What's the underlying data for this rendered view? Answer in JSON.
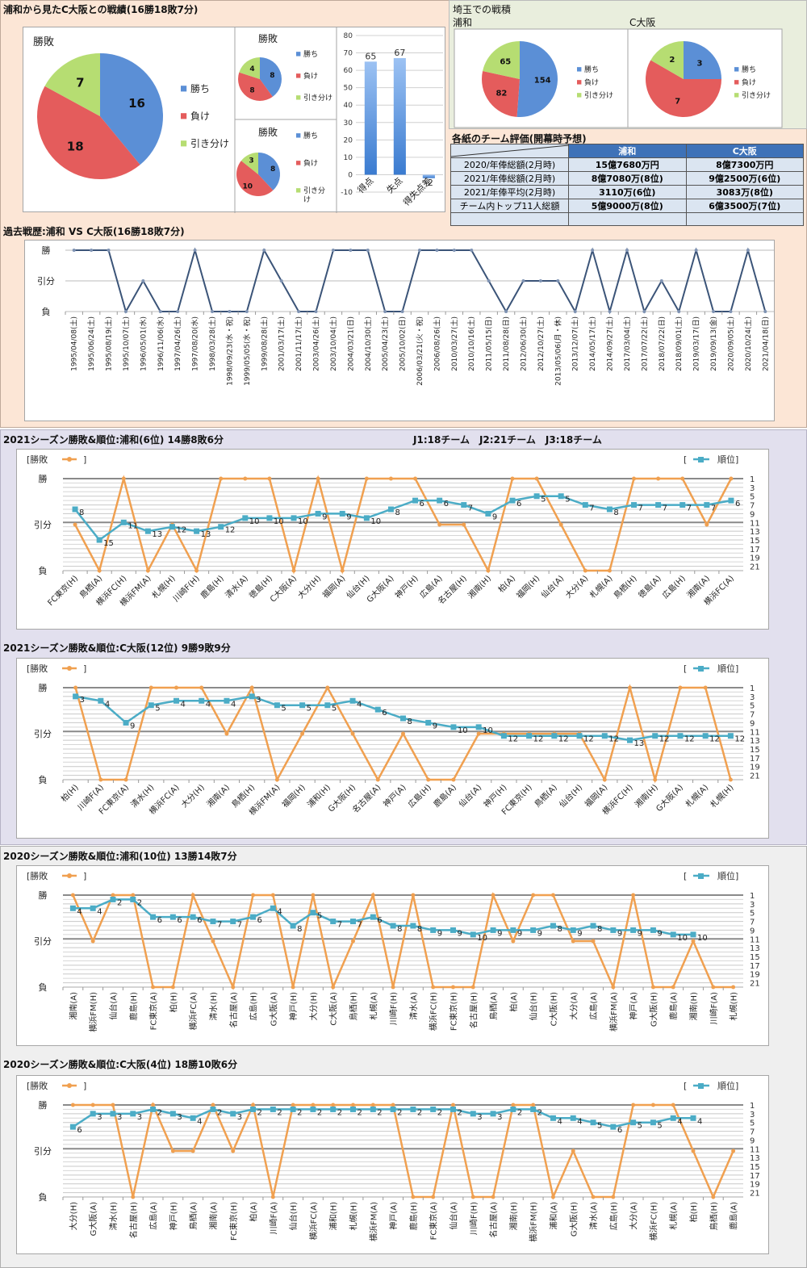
{
  "summary": {
    "title": "浦和から見たC大阪との戦績(16勝18敗7分)",
    "legend": {
      "win": "勝ち",
      "loss": "負け",
      "draw": "引き分け",
      "draw_wrapped": [
        "引き分",
        "け"
      ]
    },
    "colors": {
      "win": "#5b8fd6",
      "loss": "#e45c5c",
      "draw": "#b6dd72"
    }
  },
  "saitama": {
    "title": "埼玉での戦積",
    "urawa_label": "浦和",
    "cosaka_label": "C大阪"
  },
  "eval_table": {
    "title": "各紙のチーム評価(開幕時予想)",
    "headers": [
      "",
      "浦和",
      "C大阪"
    ],
    "rows": [
      [
        "2020/年俸総額(2月時)",
        "15億7680万円",
        "8億7300万円"
      ],
      [
        "2021/年俸総額(2月時)",
        "8億7080万(8位)",
        "9億2500万(6位)"
      ],
      [
        "2021/年俸平均(2月時)",
        "3110万(6位)",
        "3083万(8位)"
      ],
      [
        "チーム内トップ11人総額",
        "5億9000万(8位)",
        "6億3500万(7位)"
      ],
      [
        "",
        "",
        ""
      ]
    ]
  },
  "history_title": "過去戦歴:浦和 VS C大阪(16勝18敗7分)",
  "season_titles": {
    "s2021_urawa": "2021シーズン勝敗&順位:浦和(6位) 14勝8敗6分",
    "s2021_note": "J1:18チーム　J2:21チーム　J3:18チーム",
    "s2021_cosaka": "2021シーズン勝敗&順位:C大阪(12位) 9勝9敗9分",
    "s2020_urawa": "2020シーズン勝敗&順位:浦和(10位) 13勝14敗7分",
    "s2020_cosaka": "2020シーズン勝敗&順位:C大阪(4位) 18勝10敗6分"
  },
  "season_legend": {
    "result": "[勝敗",
    "result_close": "]",
    "rank_open": "[",
    "rank": "順位]"
  },
  "chart_data": [
    {
      "id": "pie_total",
      "type": "pie",
      "title": "勝敗",
      "labels": [
        "勝ち",
        "負け",
        "引き分け"
      ],
      "values": [
        16,
        18,
        7
      ]
    },
    {
      "id": "pie_home",
      "type": "pie",
      "title": "勝敗",
      "labels": [
        "勝ち",
        "負け",
        "引き分け"
      ],
      "values": [
        8,
        8,
        4
      ]
    },
    {
      "id": "pie_away",
      "type": "pie",
      "title": "勝敗",
      "labels": [
        "勝ち",
        "負け",
        "引き分け"
      ],
      "values": [
        8,
        10,
        3
      ]
    },
    {
      "id": "goals_bar",
      "type": "bar",
      "title": "",
      "categories": [
        "得点",
        "失点",
        "得失点差"
      ],
      "values": [
        65,
        67,
        -2
      ],
      "data_labels": [
        "65",
        "67",
        "-2"
      ],
      "ylim": [
        -10,
        80
      ],
      "yticks": [
        -10,
        0,
        10,
        20,
        30,
        40,
        50,
        60,
        70,
        80
      ]
    },
    {
      "id": "pie_saitama_urawa",
      "type": "pie",
      "title": "浦和",
      "labels": [
        "勝ち",
        "負け",
        "引き分け"
      ],
      "values": [
        154,
        82,
        65
      ]
    },
    {
      "id": "pie_saitama_cosaka",
      "type": "pie",
      "title": "C大阪",
      "labels": [
        "勝ち",
        "負け",
        "引き分け"
      ],
      "values": [
        3,
        7,
        2
      ]
    },
    {
      "id": "history",
      "type": "line",
      "title": "過去戦歴:浦和 VS C大阪(16勝18敗7分)",
      "ytick_labels": [
        "勝",
        "引分",
        "負"
      ],
      "x": [
        "1995/04/08(土)",
        "1995/06/24(土)",
        "1995/08/19(土)",
        "1995/10/07(土)",
        "1996/05/01(水)",
        "1996/11/06(水)",
        "1997/04/26(土)",
        "1997/08/20(水)",
        "1998/03/28(土)",
        "1998/09/23(水・祝)",
        "1999/05/05(水・祝)",
        "1999/08/28(土)",
        "2001/03/17(土)",
        "2001/11/17(土)",
        "2003/04/26(土)",
        "2003/10/04(土)",
        "2004/03/21(日)",
        "2004/10/30(土)",
        "2005/04/23(土)",
        "2005/10/02(日)",
        "2006/03/21(火・祝)",
        "2006/08/26(土)",
        "2010/03/27(土)",
        "2010/10/16(土)",
        "2011/05/15(日)",
        "2011/08/28(日)",
        "2012/06/30(土)",
        "2012/10/27(土)",
        "2013/05/06(月・休)",
        "2013/12/07(土)",
        "2014/05/17(土)",
        "2014/09/27(土)",
        "2017/03/04(土)",
        "2017/07/22(土)",
        "2018/07/22(日)",
        "2018/09/01(土)",
        "2019/03/17(日)",
        "2019/09/13(金)",
        "2020/09/05(土)",
        "2020/10/24(土)",
        "2021/04/18(日)"
      ],
      "results": [
        "W",
        "W",
        "W",
        "L",
        "D",
        "L",
        "L",
        "W",
        "L",
        "L",
        "L",
        "W",
        "D",
        "L",
        "L",
        "W",
        "W",
        "W",
        "L",
        "L",
        "W",
        "W",
        "W",
        "W",
        "D",
        "L",
        "D",
        "D",
        "D",
        "L",
        "W",
        "L",
        "W",
        "L",
        "D",
        "L",
        "W",
        "L",
        "L",
        "W",
        "L"
      ]
    },
    {
      "id": "s2021_urawa",
      "type": "line",
      "title": "2021シーズン勝敗&順位:浦和(6位) 14勝8敗6分",
      "ytick_left": [
        "勝",
        "引分",
        "負"
      ],
      "ytick_right": [
        1,
        3,
        5,
        7,
        9,
        11,
        13,
        15,
        17,
        19,
        21
      ],
      "x": [
        "FC東京(H)",
        "鳥栖(A)",
        "横浜FC(H)",
        "横浜FM(A)",
        "札幌(H)",
        "川崎F(H)",
        "鹿島(H)",
        "清水(A)",
        "徳島(H)",
        "C大阪(A)",
        "大分(H)",
        "福岡(A)",
        "仙台(H)",
        "G大阪(A)",
        "神戸(H)",
        "広島(A)",
        "名古屋(H)",
        "湘南(H)",
        "柏(A)",
        "福岡(H)",
        "仙台(A)",
        "大分(A)",
        "札幌(A)",
        "鳥栖(H)",
        "徳島(A)",
        "広島(H)",
        "湘南(A)",
        "横浜FC(A)"
      ],
      "series": [
        {
          "name": "勝敗",
          "color": "#f0a050",
          "values": [
            "D",
            "L",
            "W",
            "L",
            "D",
            "L",
            "W",
            "W",
            "W",
            "L",
            "W",
            "L",
            "W",
            "W",
            "W",
            "D",
            "D",
            "L",
            "W",
            "W",
            "D",
            "L",
            "L",
            "W",
            "W",
            "W",
            "D",
            "W"
          ]
        },
        {
          "name": "順位",
          "color": "#4bacc6",
          "values": [
            8,
            15,
            11,
            13,
            12,
            13,
            12,
            10,
            10,
            10,
            9,
            9,
            10,
            8,
            6,
            6,
            7,
            9,
            6,
            5,
            5,
            7,
            8,
            7,
            7,
            7,
            7,
            6
          ]
        }
      ]
    },
    {
      "id": "s2021_cosaka",
      "type": "line",
      "title": "2021シーズン勝敗&順位:C大阪(12位) 9勝9敗9分",
      "ytick_left": [
        "勝",
        "引分",
        "負"
      ],
      "ytick_right": [
        1,
        3,
        5,
        7,
        9,
        11,
        13,
        15,
        17,
        19,
        21
      ],
      "x": [
        "柏(H)",
        "川崎F(A)",
        "FC東京(A)",
        "清水(H)",
        "横浜FC(A)",
        "大分(H)",
        "湘南(A)",
        "鳥栖(H)",
        "横浜FM(A)",
        "福岡(H)",
        "浦和(H)",
        "G大阪(H)",
        "名古屋(A)",
        "神戸(A)",
        "広島(H)",
        "鹿島(A)",
        "仙台(A)",
        "神戸(H)",
        "FC東京(H)",
        "鳥栖(A)",
        "仙台(H)",
        "福岡(A)",
        "横浜FC(H)",
        "湘南(H)",
        "G大阪(A)",
        "札幌(A)",
        "札幌(H)"
      ],
      "series": [
        {
          "name": "勝敗",
          "color": "#f0a050",
          "values": [
            "W",
            "L",
            "L",
            "W",
            "W",
            "W",
            "D",
            "W",
            "L",
            "D",
            "W",
            "D",
            "L",
            "D",
            "L",
            "L",
            "D",
            "D",
            "D",
            "D",
            "D",
            "L",
            "W",
            "L",
            "W",
            "W",
            "L"
          ]
        },
        {
          "name": "順位",
          "color": "#4bacc6",
          "values": [
            3,
            4,
            9,
            5,
            4,
            4,
            4,
            3,
            5,
            5,
            5,
            4,
            6,
            8,
            9,
            10,
            10,
            12,
            12,
            12,
            12,
            12,
            13,
            12,
            12,
            12,
            12
          ]
        }
      ]
    },
    {
      "id": "s2020_urawa",
      "type": "line",
      "title": "2020シーズン勝敗&順位:浦和(10位) 13勝14敗7分",
      "ytick_left": [
        "勝",
        "引分",
        "負"
      ],
      "ytick_right": [
        1,
        3,
        5,
        7,
        9,
        11,
        13,
        15,
        17,
        19,
        21
      ],
      "x": [
        "湘南(A)",
        "横浜FM(H)",
        "仙台(A)",
        "鹿島(H)",
        "FC東京(A)",
        "柏(H)",
        "横浜FC(A)",
        "清水(H)",
        "名古屋(A)",
        "広島(H)",
        "G大阪(A)",
        "神戸(H)",
        "大分(H)",
        "C大阪(A)",
        "鳥栖(H)",
        "札幌(A)",
        "川崎F(H)",
        "清水(A)",
        "横浜FC(H)",
        "FC東京(H)",
        "名古屋(H)",
        "鳥栖(A)",
        "柏(A)",
        "仙台(H)",
        "C大阪(H)",
        "大分(A)",
        "広島(A)",
        "横浜FM(A)",
        "神戸(A)",
        "G大阪(H)",
        "鹿島(A)",
        "湘南(H)",
        "川崎F(A)",
        "札幌(H)"
      ],
      "series": [
        {
          "name": "勝敗",
          "color": "#f0a050",
          "values": [
            "W",
            "D",
            "W",
            "W",
            "L",
            "L",
            "W",
            "D",
            "L",
            "W",
            "W",
            "L",
            "W",
            "L",
            "D",
            "W",
            "L",
            "W",
            "L",
            "L",
            "L",
            "W",
            "D",
            "W",
            "W",
            "D",
            "D",
            "L",
            "W",
            "L",
            "L",
            "D",
            "L",
            "L"
          ]
        },
        {
          "name": "順位",
          "color": "#4bacc6",
          "values": [
            4,
            4,
            2,
            2,
            6,
            6,
            6,
            7,
            7,
            6,
            4,
            8,
            5,
            7,
            7,
            6,
            8,
            8,
            9,
            9,
            10,
            9,
            9,
            9,
            8,
            9,
            8,
            9,
            9,
            9,
            10,
            10,
            null,
            null
          ]
        }
      ]
    },
    {
      "id": "s2020_cosaka",
      "type": "line",
      "title": "2020シーズン勝敗&順位:C大阪(4位) 18勝10敗6分",
      "ytick_left": [
        "勝",
        "引分",
        "負"
      ],
      "ytick_right": [
        1,
        3,
        5,
        7,
        9,
        11,
        13,
        15,
        17,
        19,
        21
      ],
      "x": [
        "大分(H)",
        "G大阪(A)",
        "清水(H)",
        "名古屋(H)",
        "広島(A)",
        "神戸(H)",
        "鳥栖(A)",
        "湘南(A)",
        "FC東京(H)",
        "柏(A)",
        "川崎F(A)",
        "仙台(H)",
        "横浜FC(A)",
        "浦和(H)",
        "札幌(H)",
        "横浜FM(A)",
        "神戸(A)",
        "鹿島(H)",
        "FC東京(A)",
        "仙台(A)",
        "川崎F(H)",
        "名古屋(A)",
        "湘南(H)",
        "横浜FM(H)",
        "浦和(A)",
        "G大阪(H)",
        "清水(A)",
        "広島(H)",
        "大分(A)",
        "横浜FC(H)",
        "札幌(A)",
        "柏(H)",
        "鳥栖(H)",
        "鹿島(A)"
      ],
      "series": [
        {
          "name": "勝敗",
          "color": "#f0a050",
          "values": [
            "W",
            "W",
            "W",
            "L",
            "W",
            "D",
            "D",
            "W",
            "D",
            "W",
            "L",
            "W",
            "W",
            "W",
            "W",
            "W",
            "W",
            "L",
            "L",
            "W",
            "L",
            "L",
            "W",
            "W",
            "L",
            "D",
            "L",
            "L",
            "W",
            "W",
            "W",
            "D",
            "L",
            "D"
          ]
        },
        {
          "name": "順位",
          "color": "#4bacc6",
          "values": [
            6,
            3,
            3,
            3,
            2,
            3,
            4,
            2,
            3,
            2,
            2,
            2,
            2,
            2,
            2,
            2,
            2,
            2,
            2,
            2,
            3,
            3,
            2,
            2,
            4,
            4,
            5,
            6,
            5,
            5,
            4,
            4,
            null,
            null
          ]
        }
      ]
    }
  ]
}
